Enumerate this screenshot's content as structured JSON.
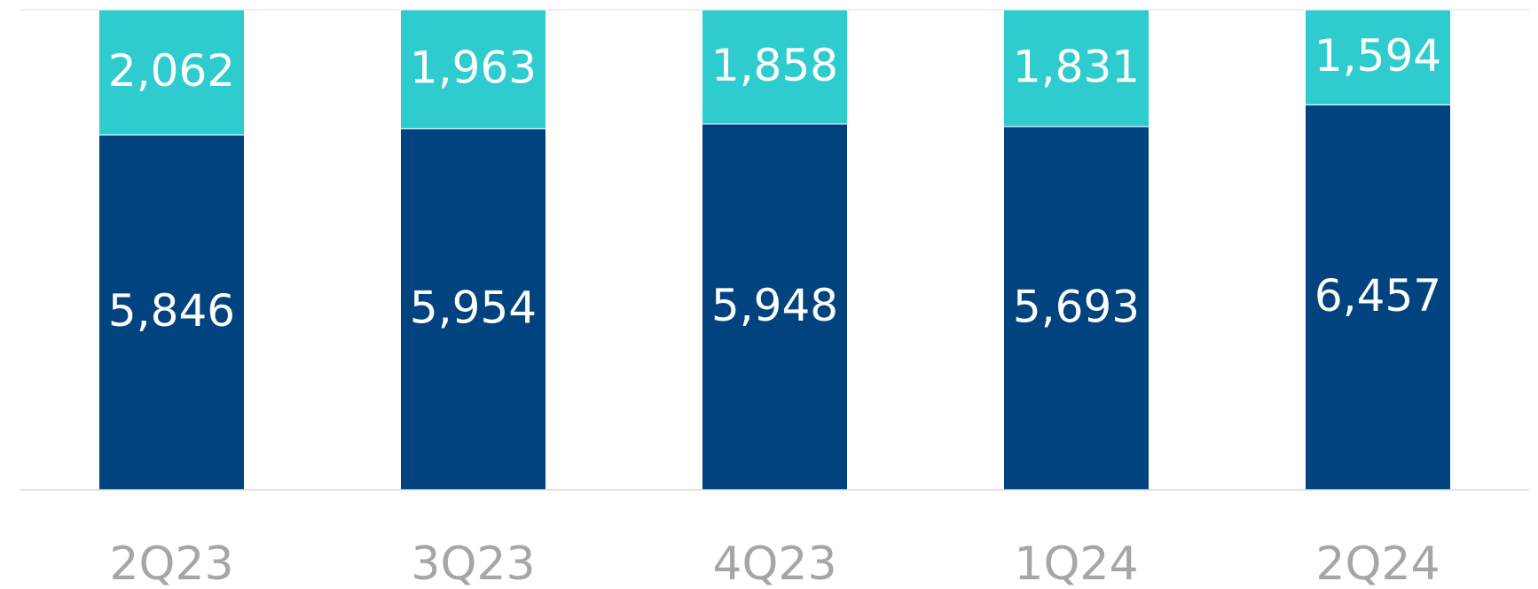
{
  "chart_data": {
    "type": "bar",
    "stacking": "percent",
    "categories": [
      "2Q23",
      "3Q23",
      "4Q23",
      "1Q24",
      "2Q24"
    ],
    "series": [
      {
        "color": "#00437f",
        "values": [
          5846,
          5954,
          5948,
          5693,
          6457
        ],
        "value_labels": [
          "5,846",
          "5,954",
          "5,948",
          "5,693",
          "6,457"
        ]
      },
      {
        "color": "#2ecccf",
        "values": [
          2062,
          1963,
          1858,
          1831,
          1594
        ],
        "value_labels": [
          "2,062",
          "1,963",
          "1,858",
          "1,831",
          "1,594"
        ]
      }
    ]
  }
}
